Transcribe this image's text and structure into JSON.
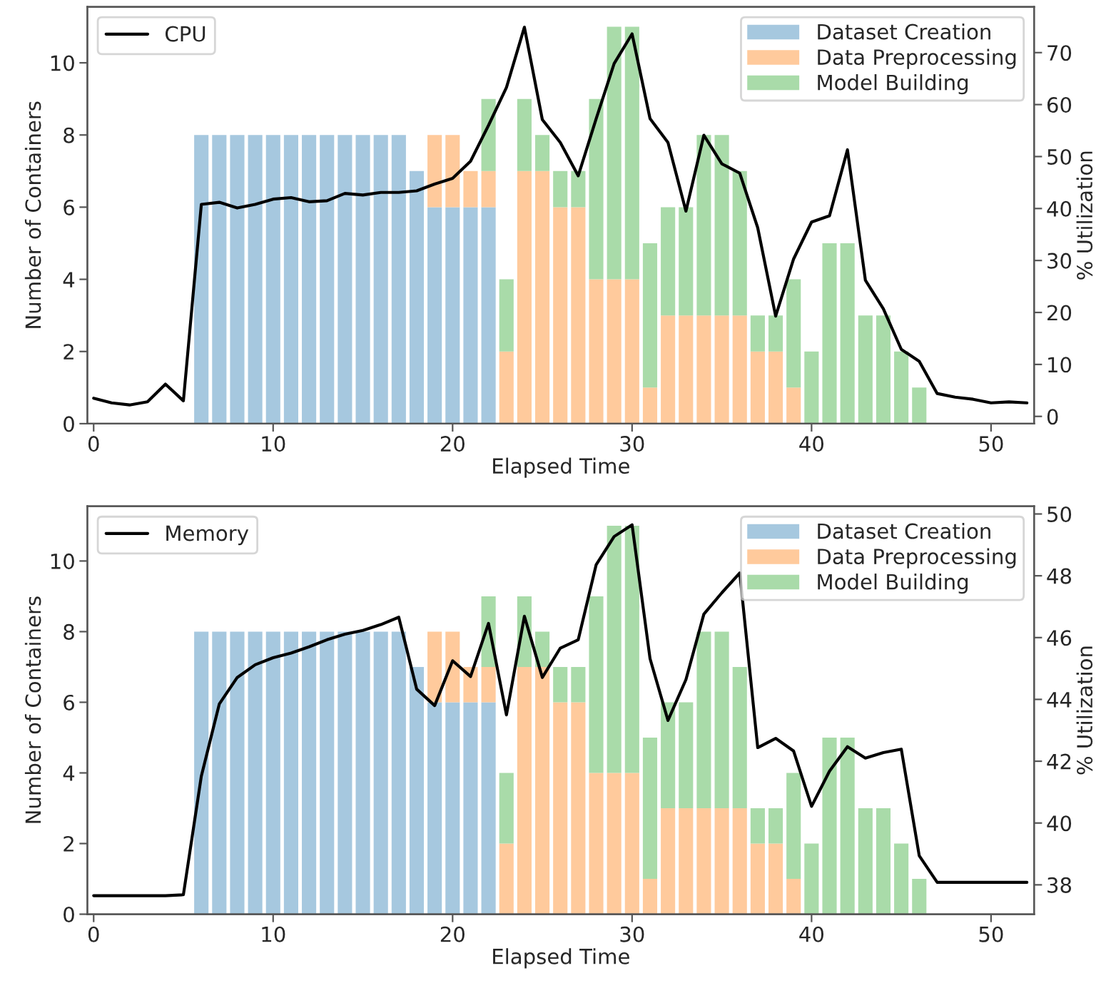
{
  "chart_data": [
    {
      "type": "bar",
      "stacked": true,
      "xlabel": "Elapsed Time",
      "ylabel": "Number of Containers",
      "y2label": "% Utilization",
      "x": [
        6,
        7,
        8,
        9,
        10,
        11,
        12,
        13,
        14,
        15,
        16,
        17,
        18,
        19,
        20,
        21,
        22,
        23,
        24,
        25,
        26,
        27,
        28,
        29,
        30,
        31,
        32,
        33,
        34,
        35,
        36,
        37,
        38,
        39,
        40,
        41,
        42,
        43,
        44,
        45,
        46
      ],
      "xlim": [
        -0.35,
        52.4
      ],
      "xticks": [
        0,
        10,
        20,
        30,
        40,
        50
      ],
      "ylim": [
        0,
        11.55
      ],
      "yticks": [
        0,
        2,
        4,
        6,
        8,
        10
      ],
      "y2lim": [
        -1.4,
        78.8
      ],
      "y2ticks": [
        0,
        10,
        20,
        30,
        40,
        50,
        60,
        70
      ],
      "legend": "top right",
      "grid": false,
      "series": [
        {
          "name": "Dataset Creation",
          "color": "#a6c8df",
          "values": [
            8,
            8,
            8,
            8,
            8,
            8,
            8,
            8,
            8,
            8,
            8,
            8,
            7,
            6,
            6,
            6,
            6,
            null,
            null,
            null,
            null,
            null,
            null,
            null,
            null,
            null,
            null,
            null,
            null,
            null,
            null,
            null,
            null,
            null,
            null,
            null,
            null,
            null,
            null,
            null,
            null
          ]
        },
        {
          "name": "Data Preprocessing",
          "color": "#ffca9c",
          "values": [
            null,
            null,
            null,
            null,
            null,
            null,
            null,
            null,
            null,
            null,
            null,
            null,
            null,
            2,
            2,
            1,
            1,
            2,
            7,
            7,
            6,
            6,
            4,
            4,
            4,
            1,
            3,
            3,
            3,
            3,
            3,
            2,
            2,
            1,
            null,
            null,
            null,
            null,
            null,
            null,
            null
          ]
        },
        {
          "name": "Model Building",
          "color": "#a9dba9",
          "values": [
            null,
            null,
            null,
            null,
            null,
            null,
            null,
            null,
            null,
            null,
            null,
            null,
            null,
            null,
            null,
            null,
            2,
            2,
            2,
            1,
            1,
            1,
            5,
            7,
            7,
            4,
            3,
            3,
            5,
            5,
            4,
            1,
            1,
            3,
            2,
            5,
            5,
            3,
            3,
            2,
            1
          ]
        },
        {
          "name": "CPU",
          "type": "line",
          "axis": "y2",
          "color": "#000000",
          "x": [
            0,
            1,
            2,
            3,
            4,
            5,
            6,
            7,
            8,
            9,
            10,
            11,
            12,
            13,
            14,
            15,
            16,
            17,
            18,
            19,
            20,
            21,
            22,
            23,
            24,
            25,
            26,
            27,
            28,
            29,
            30,
            31,
            32,
            33,
            34,
            35,
            36,
            37,
            38,
            39,
            40,
            41,
            42,
            43,
            44,
            45,
            46,
            47,
            48,
            49,
            50,
            51,
            52
          ],
          "values": [
            3.5,
            2.6,
            2.2,
            2.8,
            6.2,
            3.0,
            40.8,
            41.2,
            40.1,
            40.8,
            41.8,
            42.1,
            41.3,
            41.5,
            42.9,
            42.6,
            43.1,
            43.1,
            43.4,
            44.7,
            45.8,
            49.1,
            56.0,
            63.3,
            74.9,
            57.1,
            52.7,
            46.3,
            57.3,
            67.9,
            73.6,
            57.3,
            52.7,
            39.5,
            54.1,
            48.6,
            46.8,
            36.3,
            19.3,
            30.3,
            37.4,
            38.6,
            51.3,
            26.2,
            20.7,
            12.9,
            10.6,
            4.4,
            3.7,
            3.3,
            2.6,
            2.8,
            2.6
          ]
        }
      ]
    },
    {
      "type": "bar",
      "stacked": true,
      "xlabel": "Elapsed Time",
      "ylabel": "Number of Containers",
      "y2label": "% Utilization",
      "x": [
        6,
        7,
        8,
        9,
        10,
        11,
        12,
        13,
        14,
        15,
        16,
        17,
        18,
        19,
        20,
        21,
        22,
        23,
        24,
        25,
        26,
        27,
        28,
        29,
        30,
        31,
        32,
        33,
        34,
        35,
        36,
        37,
        38,
        39,
        40,
        41,
        42,
        43,
        44,
        45,
        46
      ],
      "xlim": [
        -0.35,
        52.4
      ],
      "xticks": [
        0,
        10,
        20,
        30,
        40,
        50
      ],
      "ylim": [
        0,
        11.55
      ],
      "yticks": [
        0,
        2,
        4,
        6,
        8,
        10
      ],
      "y2lim": [
        37.05,
        50.25
      ],
      "y2ticks": [
        38,
        40,
        42,
        44,
        46,
        48,
        50
      ],
      "legend": "top right",
      "grid": false,
      "series": [
        {
          "name": "Dataset Creation",
          "color": "#a6c8df",
          "values": [
            8,
            8,
            8,
            8,
            8,
            8,
            8,
            8,
            8,
            8,
            8,
            8,
            7,
            6,
            6,
            6,
            6,
            null,
            null,
            null,
            null,
            null,
            null,
            null,
            null,
            null,
            null,
            null,
            null,
            null,
            null,
            null,
            null,
            null,
            null,
            null,
            null,
            null,
            null,
            null,
            null
          ]
        },
        {
          "name": "Data Preprocessing",
          "color": "#ffca9c",
          "values": [
            null,
            null,
            null,
            null,
            null,
            null,
            null,
            null,
            null,
            null,
            null,
            null,
            null,
            2,
            2,
            1,
            1,
            2,
            7,
            7,
            6,
            6,
            4,
            4,
            4,
            1,
            3,
            3,
            3,
            3,
            3,
            2,
            2,
            1,
            null,
            null,
            null,
            null,
            null,
            null,
            null
          ]
        },
        {
          "name": "Model Building",
          "color": "#a9dba9",
          "values": [
            null,
            null,
            null,
            null,
            null,
            null,
            null,
            null,
            null,
            null,
            null,
            null,
            null,
            null,
            null,
            null,
            2,
            2,
            2,
            1,
            1,
            1,
            5,
            7,
            7,
            4,
            3,
            3,
            5,
            5,
            4,
            1,
            1,
            3,
            2,
            5,
            5,
            3,
            3,
            2,
            1
          ]
        },
        {
          "name": "Memory",
          "type": "line",
          "axis": "y2",
          "color": "#000000",
          "x": [
            0,
            1,
            2,
            3,
            4,
            5,
            6,
            7,
            8,
            9,
            10,
            11,
            12,
            13,
            14,
            15,
            16,
            17,
            18,
            19,
            20,
            21,
            22,
            23,
            24,
            25,
            26,
            27,
            28,
            29,
            30,
            31,
            32,
            33,
            34,
            35,
            36,
            37,
            38,
            39,
            40,
            41,
            42,
            43,
            44,
            45,
            46,
            47,
            48,
            49,
            50,
            51,
            52
          ],
          "values": [
            37.65,
            37.65,
            37.65,
            37.65,
            37.65,
            37.68,
            41.52,
            43.85,
            44.71,
            45.12,
            45.35,
            45.5,
            45.7,
            45.93,
            46.11,
            46.23,
            46.42,
            46.66,
            44.33,
            43.8,
            45.25,
            44.74,
            46.46,
            43.5,
            46.69,
            44.71,
            45.66,
            45.93,
            48.36,
            49.27,
            49.65,
            45.32,
            43.32,
            44.64,
            46.76,
            47.45,
            48.09,
            42.44,
            42.74,
            42.33,
            40.54,
            41.68,
            42.47,
            42.1,
            42.28,
            42.39,
            38.94,
            38.08,
            38.08,
            38.08,
            38.08,
            38.08,
            38.08
          ]
        }
      ]
    }
  ]
}
